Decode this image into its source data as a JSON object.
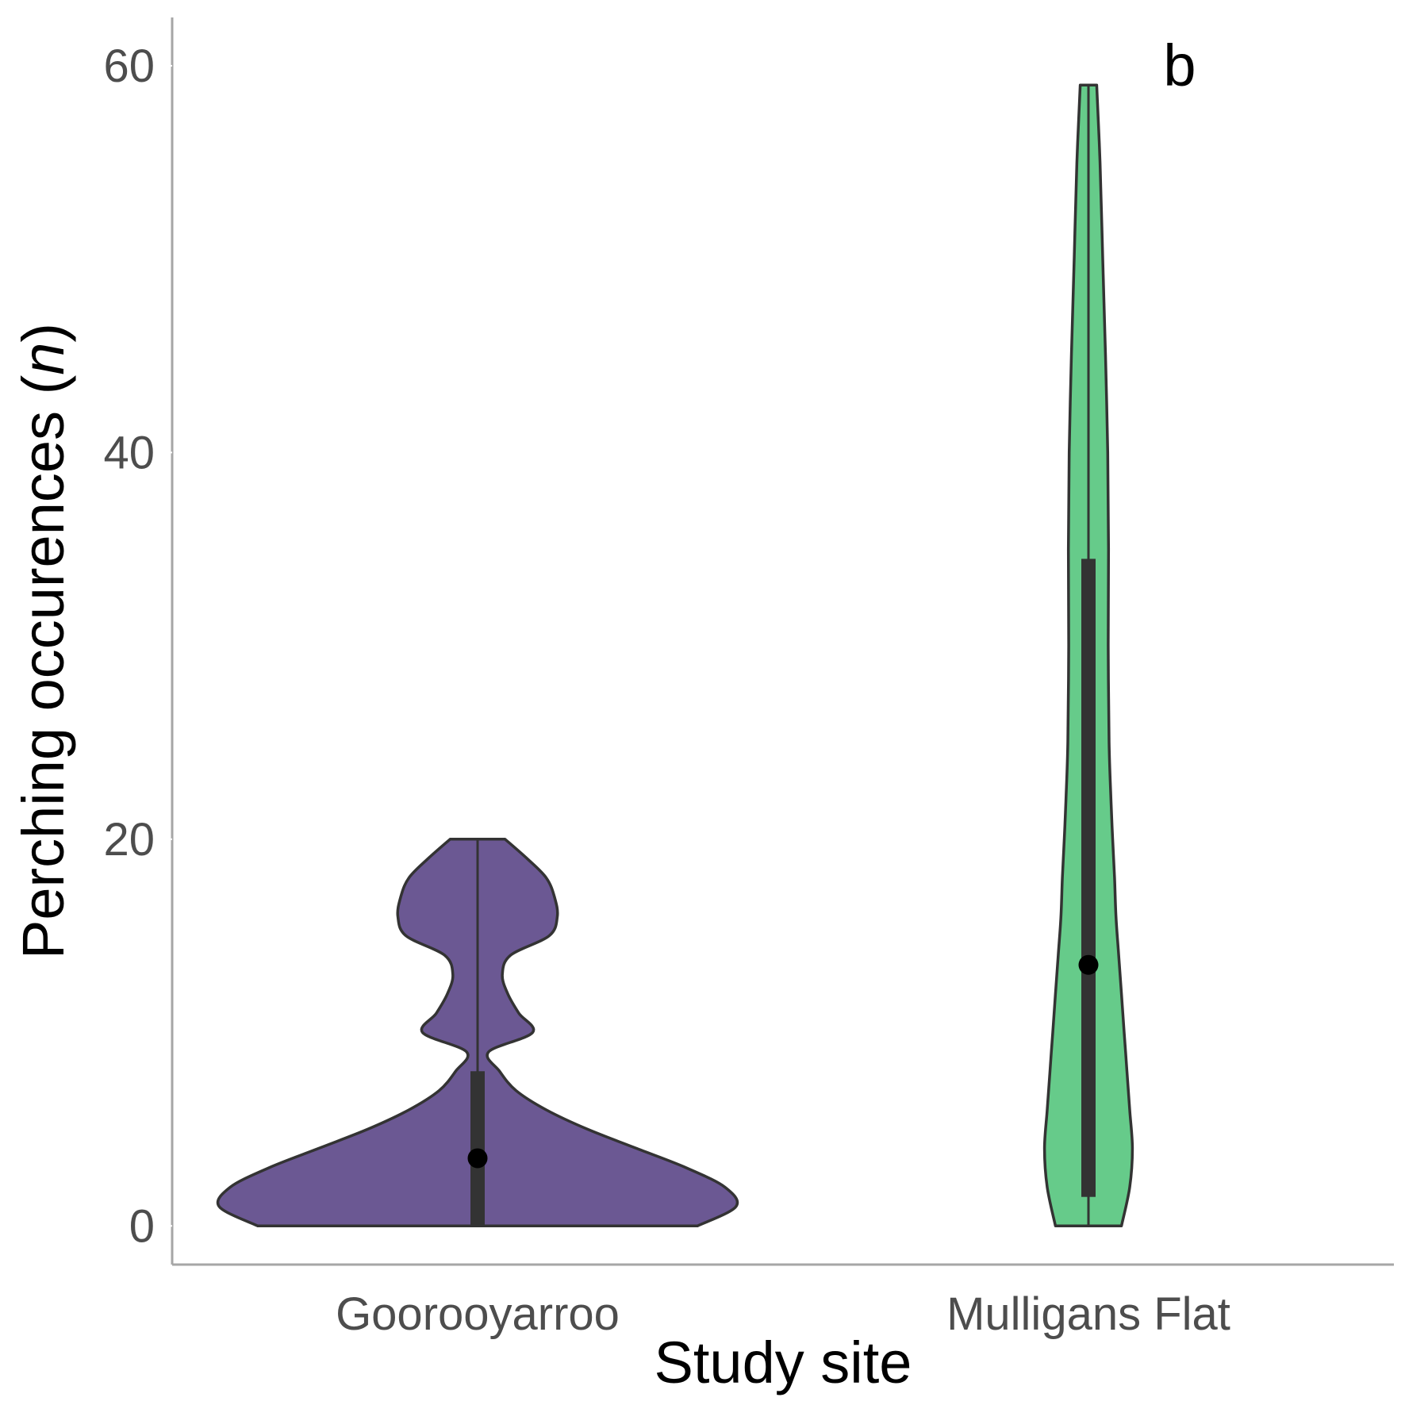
{
  "chart_data": {
    "type": "violin",
    "xlabel": "Study site",
    "ylabel_text": "Perching occurences",
    "ylabel_symbol": "n",
    "ylim": [
      -2,
      62.5
    ],
    "yticks": [
      0,
      20,
      40,
      60
    ],
    "yticklabels": [
      "0",
      "20",
      "40",
      "60"
    ],
    "categories": [
      "Goorooyarroo",
      "Mulligans Flat"
    ],
    "annotations": [
      {
        "category": "Mulligans Flat",
        "text": "b",
        "y": 60
      }
    ],
    "grid": false,
    "legend": "none",
    "violins": [
      {
        "category": "Goorooyarroo",
        "fill": "#6b5893",
        "min": 0,
        "max": 20,
        "q1": 0,
        "q3": 8,
        "median": 3.5,
        "density": [
          [
            0,
            0.8
          ],
          [
            1,
            0.94
          ],
          [
            2,
            0.9
          ],
          [
            3,
            0.76
          ],
          [
            4,
            0.58
          ],
          [
            5,
            0.4
          ],
          [
            6,
            0.25
          ],
          [
            7,
            0.14
          ],
          [
            8,
            0.08
          ],
          [
            9,
            0.04
          ],
          [
            10,
            0.2
          ],
          [
            11,
            0.15
          ],
          [
            12,
            0.11
          ],
          [
            13,
            0.09
          ],
          [
            14,
            0.12
          ],
          [
            15,
            0.26
          ],
          [
            16,
            0.29
          ],
          [
            17,
            0.28
          ],
          [
            18,
            0.25
          ],
          [
            19,
            0.18
          ],
          [
            20,
            0.1
          ]
        ]
      },
      {
        "category": "Mulligans Flat",
        "fill": "#66cb8a",
        "min": 0,
        "max": 59,
        "q1": 1.5,
        "q3": 34.5,
        "median": 13.5,
        "density": [
          [
            0,
            0.12
          ],
          [
            2,
            0.15
          ],
          [
            4,
            0.16
          ],
          [
            6,
            0.15
          ],
          [
            8,
            0.14
          ],
          [
            10,
            0.13
          ],
          [
            12,
            0.12
          ],
          [
            14,
            0.11
          ],
          [
            16,
            0.1
          ],
          [
            18,
            0.095
          ],
          [
            20,
            0.088
          ],
          [
            22,
            0.082
          ],
          [
            25,
            0.075
          ],
          [
            30,
            0.072
          ],
          [
            35,
            0.073
          ],
          [
            40,
            0.07
          ],
          [
            45,
            0.062
          ],
          [
            50,
            0.052
          ],
          [
            55,
            0.042
          ],
          [
            59,
            0.03
          ]
        ]
      }
    ]
  }
}
